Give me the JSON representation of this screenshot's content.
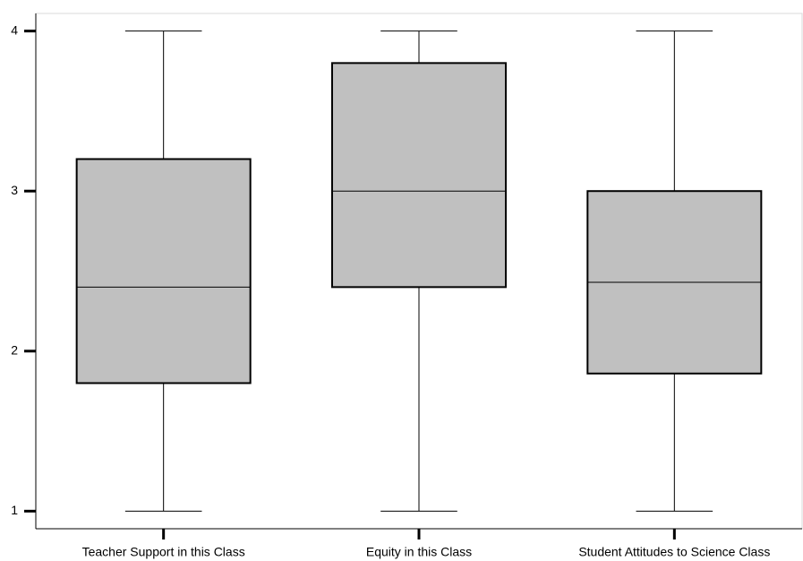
{
  "chart_data": {
    "type": "box",
    "categories": [
      "Teacher Support in this Class",
      "Equity in this Class",
      "Student Attitudes to Science Class"
    ],
    "boxes": [
      {
        "min": 1,
        "q1": 1.8,
        "median": 2.4,
        "q3": 3.2,
        "max": 4
      },
      {
        "min": 1,
        "q1": 2.4,
        "median": 3,
        "q3": 3.8,
        "max": 4
      },
      {
        "min": 1,
        "q1": 1.86,
        "median": 2.43,
        "q3": 3,
        "max": 4
      }
    ],
    "color": "#c0c0c0",
    "ylim": [
      0.89,
      4.11
    ],
    "yticks": [
      1,
      2,
      3,
      4
    ],
    "grid": false
  }
}
